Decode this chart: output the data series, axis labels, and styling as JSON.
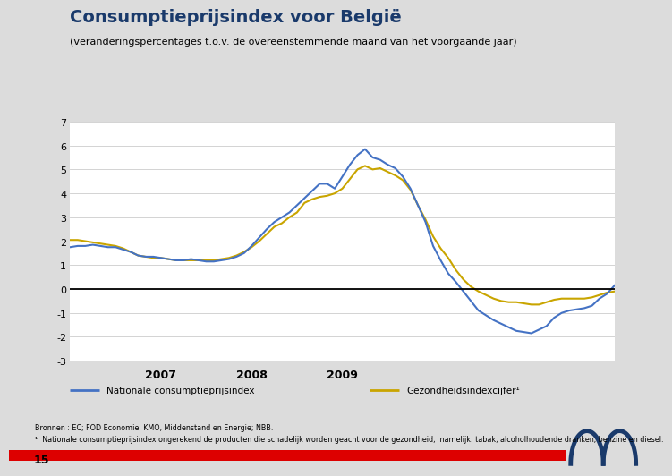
{
  "title": "Consumptieprijsindex voor België",
  "subtitle": "(veranderingspercentages t.o.v. de overeenstemmende maand van het voorgaande jaar)",
  "title_color": "#1A3A6B",
  "background_color": "#DCDCDC",
  "plot_bg_color": "#FFFFFF",
  "blue_color": "#4472C4",
  "gold_color": "#C9A500",
  "ylim": [
    -3,
    7
  ],
  "yticks": [
    -3,
    -2,
    -1,
    0,
    1,
    2,
    3,
    4,
    5,
    6,
    7
  ],
  "year_labels": [
    "2007",
    "2008",
    "2009"
  ],
  "legend_blue": "Nationale consumptieprijsindex",
  "legend_gold": "Gezondheidsindexcijfer¹",
  "footer1": "Bronnen : EC; FOD Economie, KMO, Middenstand en Energie; NBB.",
  "footer2": "¹  Nationale consumptieprijsindex ongerekend de producten die schadelijk worden geacht voor de gezondheid,  namelijk: tabak, alcoholhoudende dranken, benzine en diesel.",
  "page_number": "15",
  "national_cpi": [
    1.75,
    1.8,
    1.8,
    1.85,
    1.8,
    1.75,
    1.75,
    1.65,
    1.55,
    1.4,
    1.35,
    1.35,
    1.3,
    1.25,
    1.2,
    1.2,
    1.25,
    1.2,
    1.15,
    1.15,
    1.2,
    1.25,
    1.35,
    1.5,
    1.8,
    2.15,
    2.5,
    2.8,
    3.0,
    3.2,
    3.5,
    3.8,
    4.1,
    4.4,
    4.4,
    4.2,
    4.7,
    5.2,
    5.6,
    5.85,
    5.5,
    5.4,
    5.2,
    5.05,
    4.7,
    4.2,
    3.5,
    2.8,
    1.8,
    1.2,
    0.65,
    0.3,
    -0.1,
    -0.5,
    -0.9,
    -1.1,
    -1.3,
    -1.45,
    -1.6,
    -1.75,
    -1.8,
    -1.85,
    -1.7,
    -1.55,
    -1.2,
    -1.0,
    -0.9,
    -0.85,
    -0.8,
    -0.7,
    -0.4,
    -0.2,
    0.15
  ],
  "health_index": [
    2.05,
    2.05,
    2.0,
    1.95,
    1.9,
    1.85,
    1.8,
    1.7,
    1.55,
    1.4,
    1.35,
    1.3,
    1.3,
    1.25,
    1.2,
    1.2,
    1.2,
    1.2,
    1.2,
    1.2,
    1.25,
    1.3,
    1.4,
    1.55,
    1.75,
    2.0,
    2.3,
    2.6,
    2.75,
    3.0,
    3.2,
    3.6,
    3.75,
    3.85,
    3.9,
    4.0,
    4.2,
    4.6,
    5.0,
    5.15,
    5.0,
    5.05,
    4.9,
    4.75,
    4.55,
    4.15,
    3.5,
    2.9,
    2.2,
    1.7,
    1.3,
    0.8,
    0.4,
    0.1,
    -0.1,
    -0.25,
    -0.4,
    -0.5,
    -0.55,
    -0.55,
    -0.6,
    -0.65,
    -0.65,
    -0.55,
    -0.45,
    -0.4,
    -0.4,
    -0.4,
    -0.4,
    -0.35,
    -0.25,
    -0.15,
    -0.1
  ]
}
